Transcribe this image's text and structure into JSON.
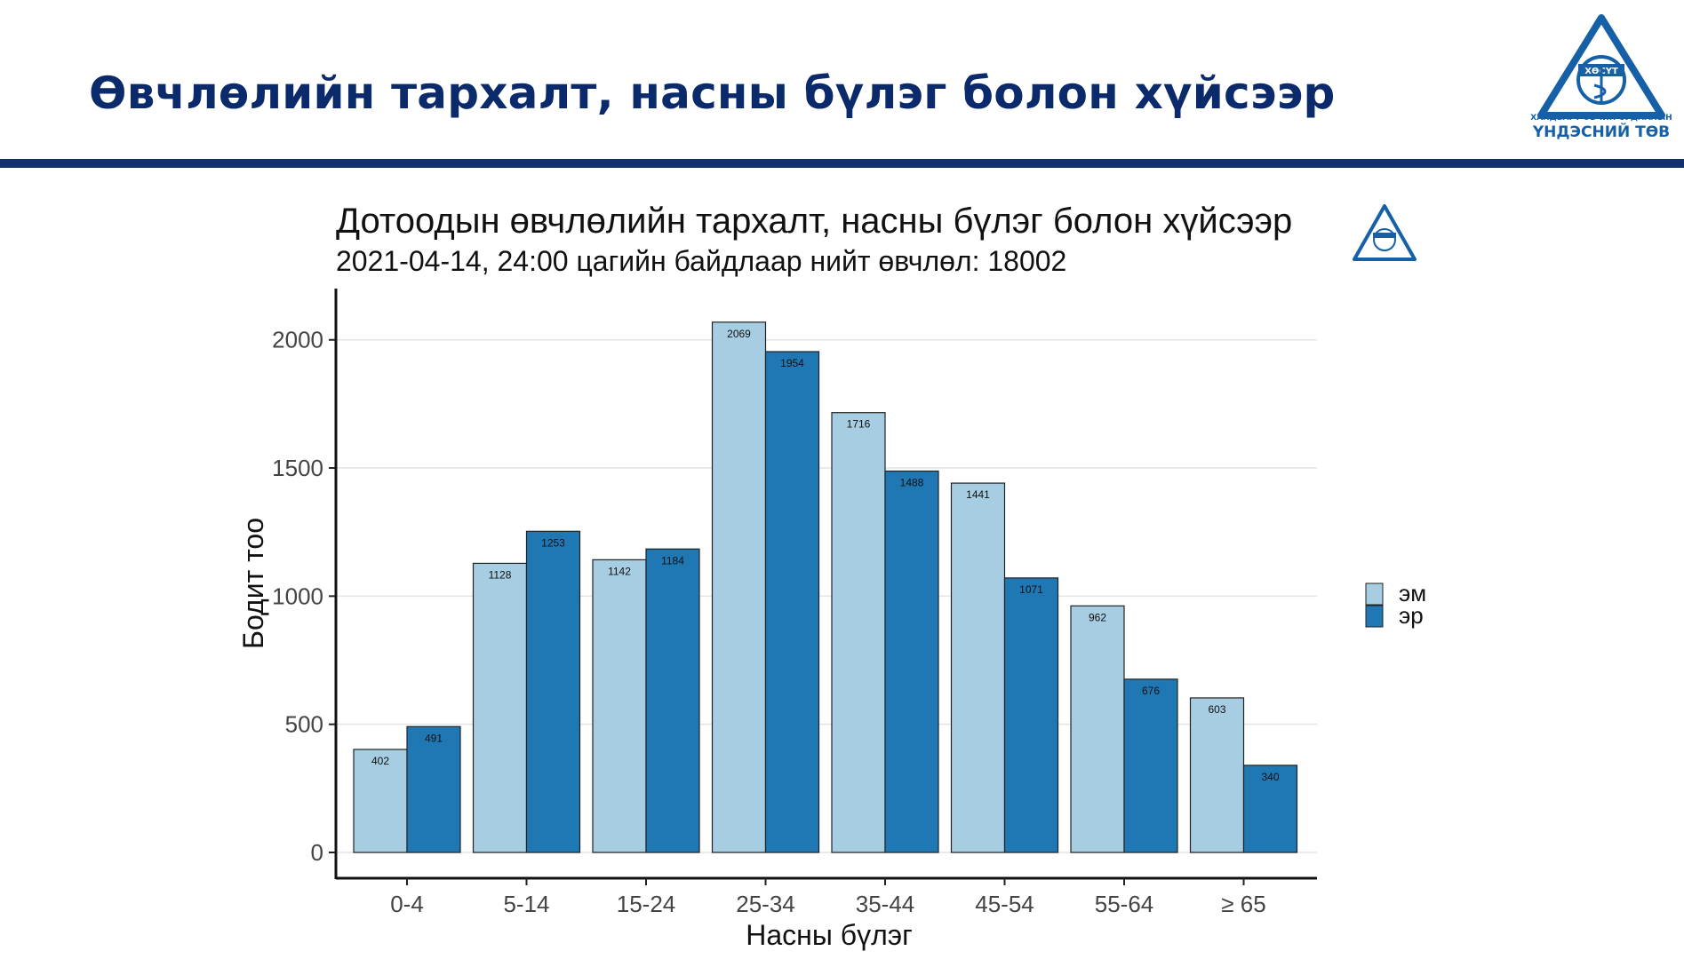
{
  "slide": {
    "title": "Өвчлөлийн тархалт, насны бүлэг болон хүйсээр",
    "logo": {
      "badge_text": "ХӨСҮТ",
      "line1": "ХАЛДВАРТ ӨВЧИН СУДЛАЛЫН",
      "line2": "ҮНДЭСНИЙ ТӨВ"
    }
  },
  "chart_data": {
    "type": "bar",
    "title": "Дотоодын өвчлөлийн тархалт, насны бүлэг болон хүйсээр",
    "subtitle": "2021-04-14, 24:00 цагийн байдлаар нийт өвчлөл: 18002",
    "xlabel": "Насны бүлэг",
    "ylabel": "Бодит тоо",
    "categories": [
      "0-4",
      "5-14",
      "15-24",
      "25-34",
      "35-44",
      "45-54",
      "55-64",
      "≥ 65"
    ],
    "series": [
      {
        "name": "эм",
        "color": "#a6cde2",
        "values": [
          402,
          1128,
          1142,
          2069,
          1716,
          1441,
          962,
          603
        ]
      },
      {
        "name": "эр",
        "color": "#1f78b4",
        "values": [
          491,
          1253,
          1184,
          1954,
          1488,
          1071,
          676,
          340
        ]
      }
    ],
    "ylim": [
      0,
      2200
    ],
    "yticks": [
      0,
      500,
      1000,
      1500,
      2000
    ],
    "grid": "horizontal",
    "legend_position": "right"
  }
}
